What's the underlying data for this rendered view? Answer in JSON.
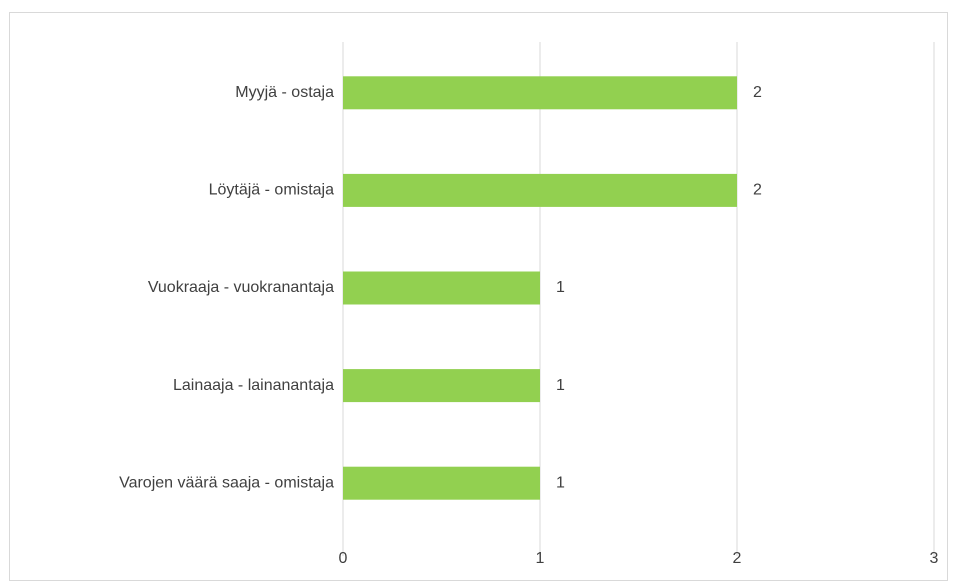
{
  "chart_data": {
    "type": "bar",
    "orientation": "horizontal",
    "categories": [
      "Myyjä - ostaja",
      "Löytäjä - omistaja",
      "Vuokraaja - vuokranantaja",
      "Lainaaja - lainanantaja",
      "Varojen väärä saaja - omistaja"
    ],
    "values": [
      2,
      2,
      1,
      1,
      1
    ],
    "color": "#92d050",
    "xlim": [
      0,
      3
    ],
    "xticks": [
      0,
      1,
      2,
      3
    ],
    "grid": true
  }
}
